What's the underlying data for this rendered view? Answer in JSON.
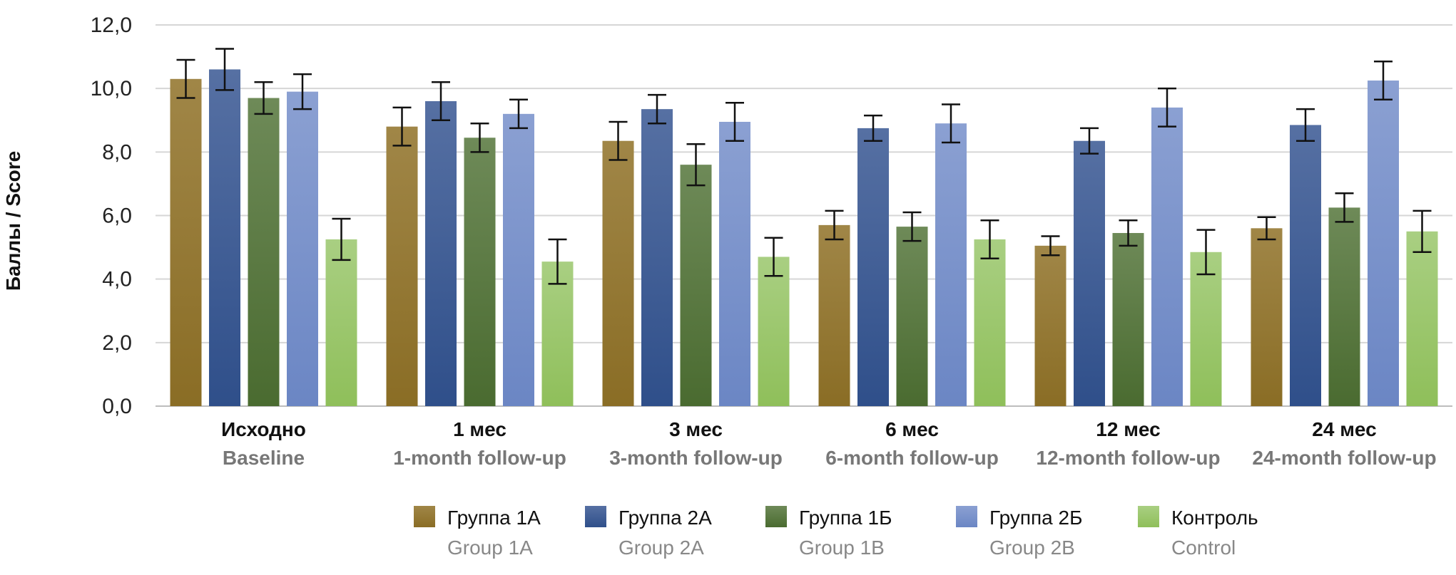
{
  "chart_data": {
    "type": "bar",
    "ylabel": "Баллы / Score",
    "ylim": [
      0,
      12
    ],
    "yticks": [
      "0,0",
      "2,0",
      "4,0",
      "6,0",
      "8,0",
      "10,0",
      "12,0"
    ],
    "grid": true,
    "legend_position": "bottom",
    "categories": [
      {
        "ru": "Исходно",
        "en": "Baseline"
      },
      {
        "ru": "1 мес",
        "en": "1-month follow-up"
      },
      {
        "ru": "3 мес",
        "en": "3-month follow-up"
      },
      {
        "ru": "6 мес",
        "en": "6-month follow-up"
      },
      {
        "ru": "12 мес",
        "en": "12-month follow-up"
      },
      {
        "ru": "24 мес",
        "en": "24-month follow-up"
      }
    ],
    "series": [
      {
        "name_ru": "Группа 1А",
        "name_en": "Group 1A",
        "color": "#8a6d25",
        "color_top": "#a08647",
        "values": [
          10.3,
          8.8,
          8.35,
          5.7,
          5.05,
          5.6
        ],
        "errors": [
          0.6,
          0.6,
          0.6,
          0.45,
          0.3,
          0.35
        ]
      },
      {
        "name_ru": "Группа 2А",
        "name_en": "Group 2A",
        "color": "#2f4f8a",
        "color_top": "#5670a3",
        "values": [
          10.6,
          9.6,
          9.35,
          8.75,
          8.35,
          8.85
        ],
        "errors": [
          0.65,
          0.6,
          0.45,
          0.4,
          0.4,
          0.5
        ]
      },
      {
        "name_ru": "Группа 1Б",
        "name_en": "Group 1B",
        "color": "#4a6b30",
        "color_top": "#6e8a58",
        "values": [
          9.7,
          8.45,
          7.6,
          5.65,
          5.45,
          6.25
        ],
        "errors": [
          0.5,
          0.45,
          0.65,
          0.45,
          0.4,
          0.45
        ]
      },
      {
        "name_ru": "Группа 2Б",
        "name_en": "Group 2B",
        "color": "#6b86c4",
        "color_top": "#8ba0d2",
        "values": [
          9.9,
          9.2,
          8.95,
          8.9,
          9.4,
          10.25
        ],
        "errors": [
          0.55,
          0.45,
          0.6,
          0.6,
          0.6,
          0.6
        ]
      },
      {
        "name_ru": "Контроль",
        "name_en": "Control",
        "color": "#8fbf5a",
        "color_top": "#a9cf82",
        "values": [
          5.25,
          4.55,
          4.7,
          5.25,
          4.85,
          5.5
        ],
        "errors": [
          0.65,
          0.7,
          0.6,
          0.6,
          0.7,
          0.65
        ]
      }
    ]
  }
}
